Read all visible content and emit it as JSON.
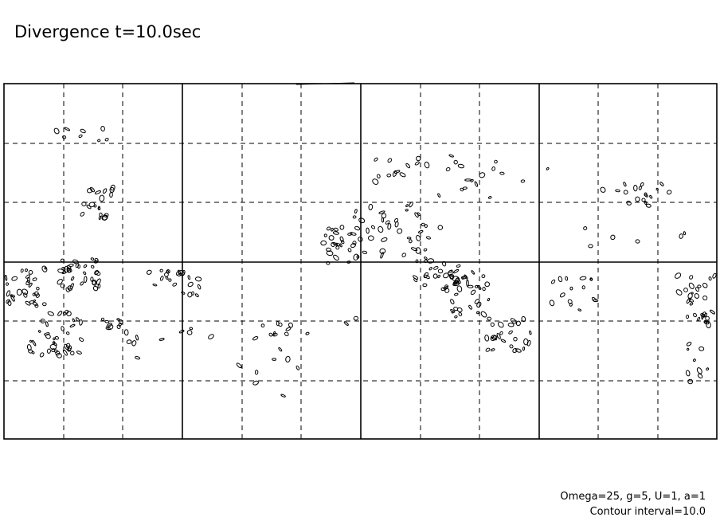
{
  "title": "Divergence t=10.0sec",
  "annotations": [
    "Omega=25, g=5, U=1, a=1",
    "Contour interval=10.0"
  ]
}
